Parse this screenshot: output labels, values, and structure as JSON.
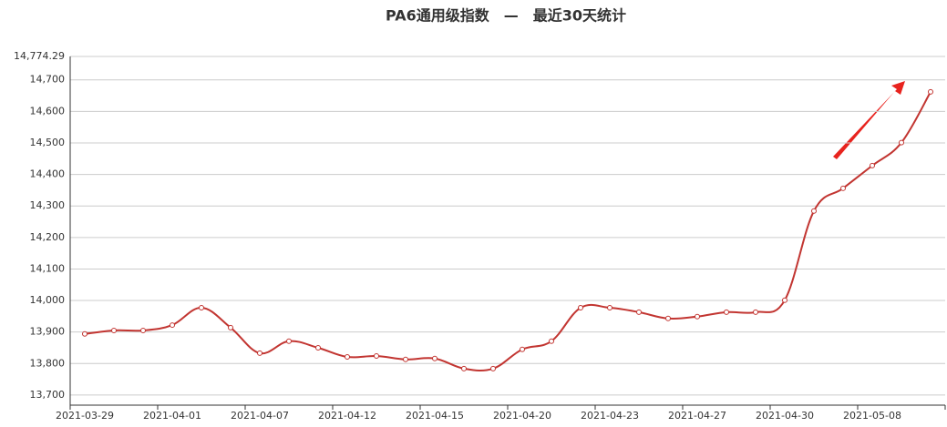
{
  "chart_data": {
    "type": "line",
    "title": "PA6通用级指数　—　最近30天统计",
    "categories": [
      "2021-03-29",
      null,
      null,
      "2021-04-01",
      null,
      null,
      "2021-04-07",
      null,
      null,
      "2021-04-12",
      null,
      null,
      "2021-04-15",
      null,
      null,
      "2021-04-20",
      null,
      null,
      "2021-04-23",
      null,
      null,
      "2021-04-27",
      null,
      null,
      "2021-04-30",
      null,
      null,
      "2021-05-08",
      null,
      null
    ],
    "series": [
      {
        "color": "#c23531",
        "values": [
          13894,
          13905,
          13905,
          13922,
          13977,
          13914,
          13833,
          13871,
          13850,
          13821,
          13824,
          13813,
          13816,
          13784,
          13784,
          13845,
          13871,
          13977,
          13977,
          13963,
          13943,
          13949,
          13963,
          13963,
          14001,
          14284,
          14356,
          14428,
          14501,
          14662
        ]
      }
    ],
    "ylim": [
      13668,
      14774.29
    ],
    "yticks": [
      {
        "value": 13700,
        "label": "13,700"
      },
      {
        "value": 13800,
        "label": "13,800"
      },
      {
        "value": 13900,
        "label": "13,900"
      },
      {
        "value": 14000,
        "label": "14,000"
      },
      {
        "value": 14100,
        "label": "14,100"
      },
      {
        "value": 14200,
        "label": "14,200"
      },
      {
        "value": 14300,
        "label": "14,300"
      },
      {
        "value": 14400,
        "label": "14,400"
      },
      {
        "value": 14500,
        "label": "14,500"
      },
      {
        "value": 14600,
        "label": "14,600"
      },
      {
        "value": 14700,
        "label": "14,700"
      },
      {
        "value": 14774.29,
        "label": "14,774.29"
      }
    ],
    "grid": true
  }
}
